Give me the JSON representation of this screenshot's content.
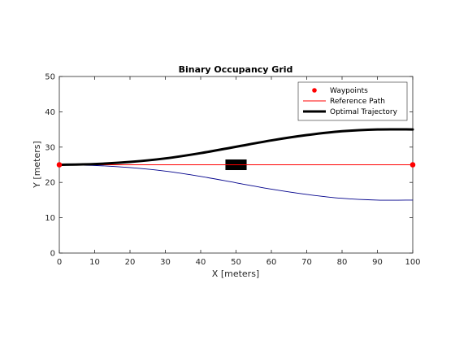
{
  "chart_data": {
    "type": "line",
    "title": "Binary Occupancy Grid",
    "xlabel": "X [meters]",
    "ylabel": "Y [meters]",
    "xlim": [
      0,
      100
    ],
    "ylim": [
      0,
      50
    ],
    "xticks": [
      "0",
      "10",
      "20",
      "30",
      "40",
      "50",
      "60",
      "70",
      "80",
      "90",
      "100"
    ],
    "yticks": [
      "0",
      "10",
      "20",
      "30",
      "40",
      "50"
    ],
    "grid": false,
    "legend_position": "top-right",
    "obstacle": {
      "x": [
        47,
        53
      ],
      "y": [
        23.5,
        26.5
      ],
      "color": "#000000"
    },
    "series": [
      {
        "name": "Waypoints",
        "style": "marker",
        "color": "#ff0000",
        "points": [
          [
            0,
            25
          ],
          [
            100,
            25
          ]
        ]
      },
      {
        "name": "Reference Path",
        "style": "line",
        "color": "#ff0000",
        "points": [
          [
            0,
            25
          ],
          [
            100,
            25
          ]
        ]
      },
      {
        "name": "Optimal Trajectory",
        "style": "thick-line",
        "color": "#000000",
        "points": [
          [
            0,
            25
          ],
          [
            10,
            25.2
          ],
          [
            20,
            25.8
          ],
          [
            30,
            26.8
          ],
          [
            40,
            28.3
          ],
          [
            50,
            30.1
          ],
          [
            60,
            31.9
          ],
          [
            70,
            33.4
          ],
          [
            80,
            34.5
          ],
          [
            90,
            35
          ],
          [
            100,
            35
          ]
        ]
      },
      {
        "name": "",
        "style": "line",
        "color": "#00008b",
        "points": [
          [
            0,
            25
          ],
          [
            10,
            24.8
          ],
          [
            20,
            24.2
          ],
          [
            30,
            23.2
          ],
          [
            40,
            21.7
          ],
          [
            50,
            19.9
          ],
          [
            60,
            18.1
          ],
          [
            70,
            16.6
          ],
          [
            80,
            15.5
          ],
          [
            90,
            15
          ],
          [
            100,
            15
          ]
        ]
      },
      {
        "name": "",
        "style": "line",
        "color": "#00008b",
        "points": [
          [
            0,
            25
          ],
          [
            100,
            25
          ]
        ]
      }
    ]
  }
}
